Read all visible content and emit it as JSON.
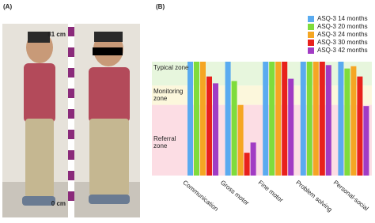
{
  "figure": {
    "panel_a": {
      "label": "(A)",
      "top_mark": "81 cm",
      "bottom_mark": "0 cm"
    },
    "panel_b": {
      "label": "(B)"
    }
  },
  "chart_data": {
    "type": "bar",
    "categories": [
      "Communication",
      "Gross motor",
      "Fine motor",
      "Problem solving",
      "Personal-social"
    ],
    "series": [
      {
        "name": "ASQ-3 14 months",
        "color": "#5aabf0",
        "values": [
          100,
          100,
          100,
          100,
          100
        ]
      },
      {
        "name": "ASQ-3 20 months",
        "color": "#7fdc3c",
        "values": [
          100,
          83,
          100,
          100,
          94
        ]
      },
      {
        "name": "ASQ-3 24 months",
        "color": "#f5a623",
        "values": [
          100,
          62,
          100,
          100,
          96
        ]
      },
      {
        "name": "ASQ-3 30 months",
        "color": "#e8211c",
        "values": [
          87,
          20,
          100,
          100,
          87
        ]
      },
      {
        "name": "ASQ-3 42 months",
        "color": "#a13bc4",
        "values": [
          81,
          29,
          85,
          97,
          61
        ]
      }
    ],
    "zones": [
      {
        "label": "Typical zone",
        "from": 79,
        "to": 100,
        "color": "#e7f6dd"
      },
      {
        "label": "Monitoring zone",
        "from": 62,
        "to": 79,
        "color": "#fcf7dc"
      },
      {
        "label": "Referral zone",
        "from": 0,
        "to": 62,
        "color": "#fcdde4"
      }
    ],
    "ylim": [
      0,
      100
    ]
  }
}
